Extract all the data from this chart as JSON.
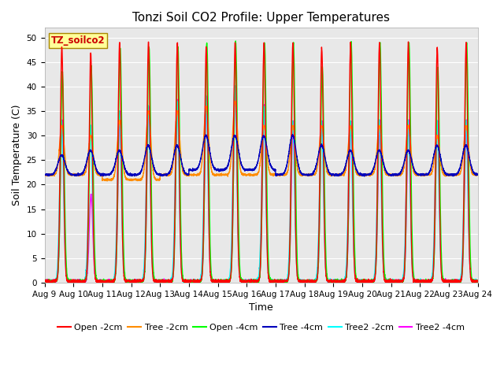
{
  "title": "Tonzi Soil CO2 Profile: Upper Temperatures",
  "ylabel": "Soil Temperature (C)",
  "xlabel": "Time",
  "ylim": [
    0,
    52
  ],
  "yticks": [
    0,
    5,
    10,
    15,
    20,
    25,
    30,
    35,
    40,
    45,
    50
  ],
  "num_days": 15,
  "xtick_labels": [
    "Aug 9",
    "Aug 10",
    "Aug 11",
    "Aug 12",
    "Aug 13",
    "Aug 14",
    "Aug 15",
    "Aug 16",
    "Aug 17",
    "Aug 18",
    "Aug 19",
    "Aug 20",
    "Aug 21",
    "Aug 22",
    "Aug 23",
    "Aug 24"
  ],
  "series": [
    {
      "label": "Open -2cm",
      "color": "#FF0000"
    },
    {
      "label": "Tree -2cm",
      "color": "#FF8C00"
    },
    {
      "label": "Open -4cm",
      "color": "#00FF00"
    },
    {
      "label": "Tree -4cm",
      "color": "#0000BB"
    },
    {
      "label": "Tree2 -2cm",
      "color": "#00FFFF"
    },
    {
      "label": "Tree2 -4cm",
      "color": "#FF00FF"
    }
  ],
  "watermark_text": "TZ_soilco2",
  "watermark_color": "#CC0000",
  "watermark_bg": "#FFFF99",
  "background_color": "#E8E8E8",
  "grid_color": "#FFFFFF",
  "title_fontsize": 11,
  "axis_label_fontsize": 9,
  "tick_fontsize": 7.5,
  "legend_fontsize": 8,
  "line_width": 1.0
}
